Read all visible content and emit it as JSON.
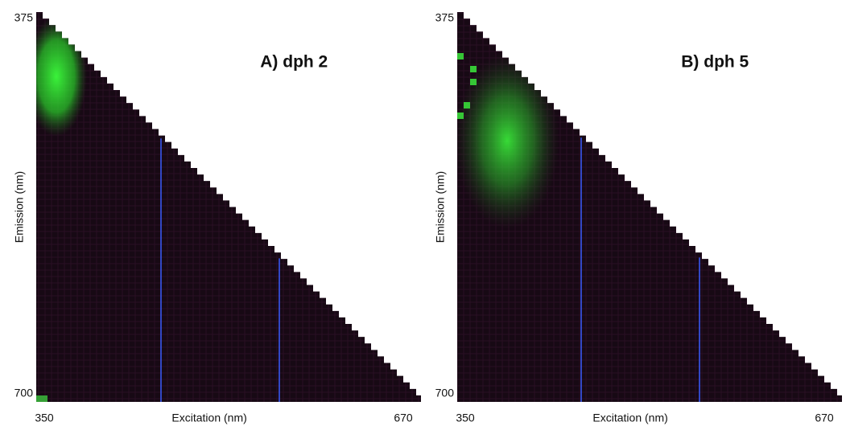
{
  "chart_data": [
    {
      "type": "heatmap",
      "title": "A) dph 2",
      "xlabel": "Excitation (nm)",
      "ylabel": "Emission (nm)",
      "xlim": [
        350,
        670
      ],
      "ylim": [
        700,
        375
      ],
      "xticks": [
        350,
        670
      ],
      "yticks": [
        375,
        700
      ]
    },
    {
      "type": "heatmap",
      "title": "B) dph 5",
      "xlabel": "Excitation (nm)",
      "ylabel": "Emission (nm)",
      "xlim": [
        350,
        670
      ],
      "ylim": [
        700,
        375
      ],
      "xticks": [
        350,
        670
      ],
      "yticks": [
        375,
        700
      ]
    }
  ]
}
